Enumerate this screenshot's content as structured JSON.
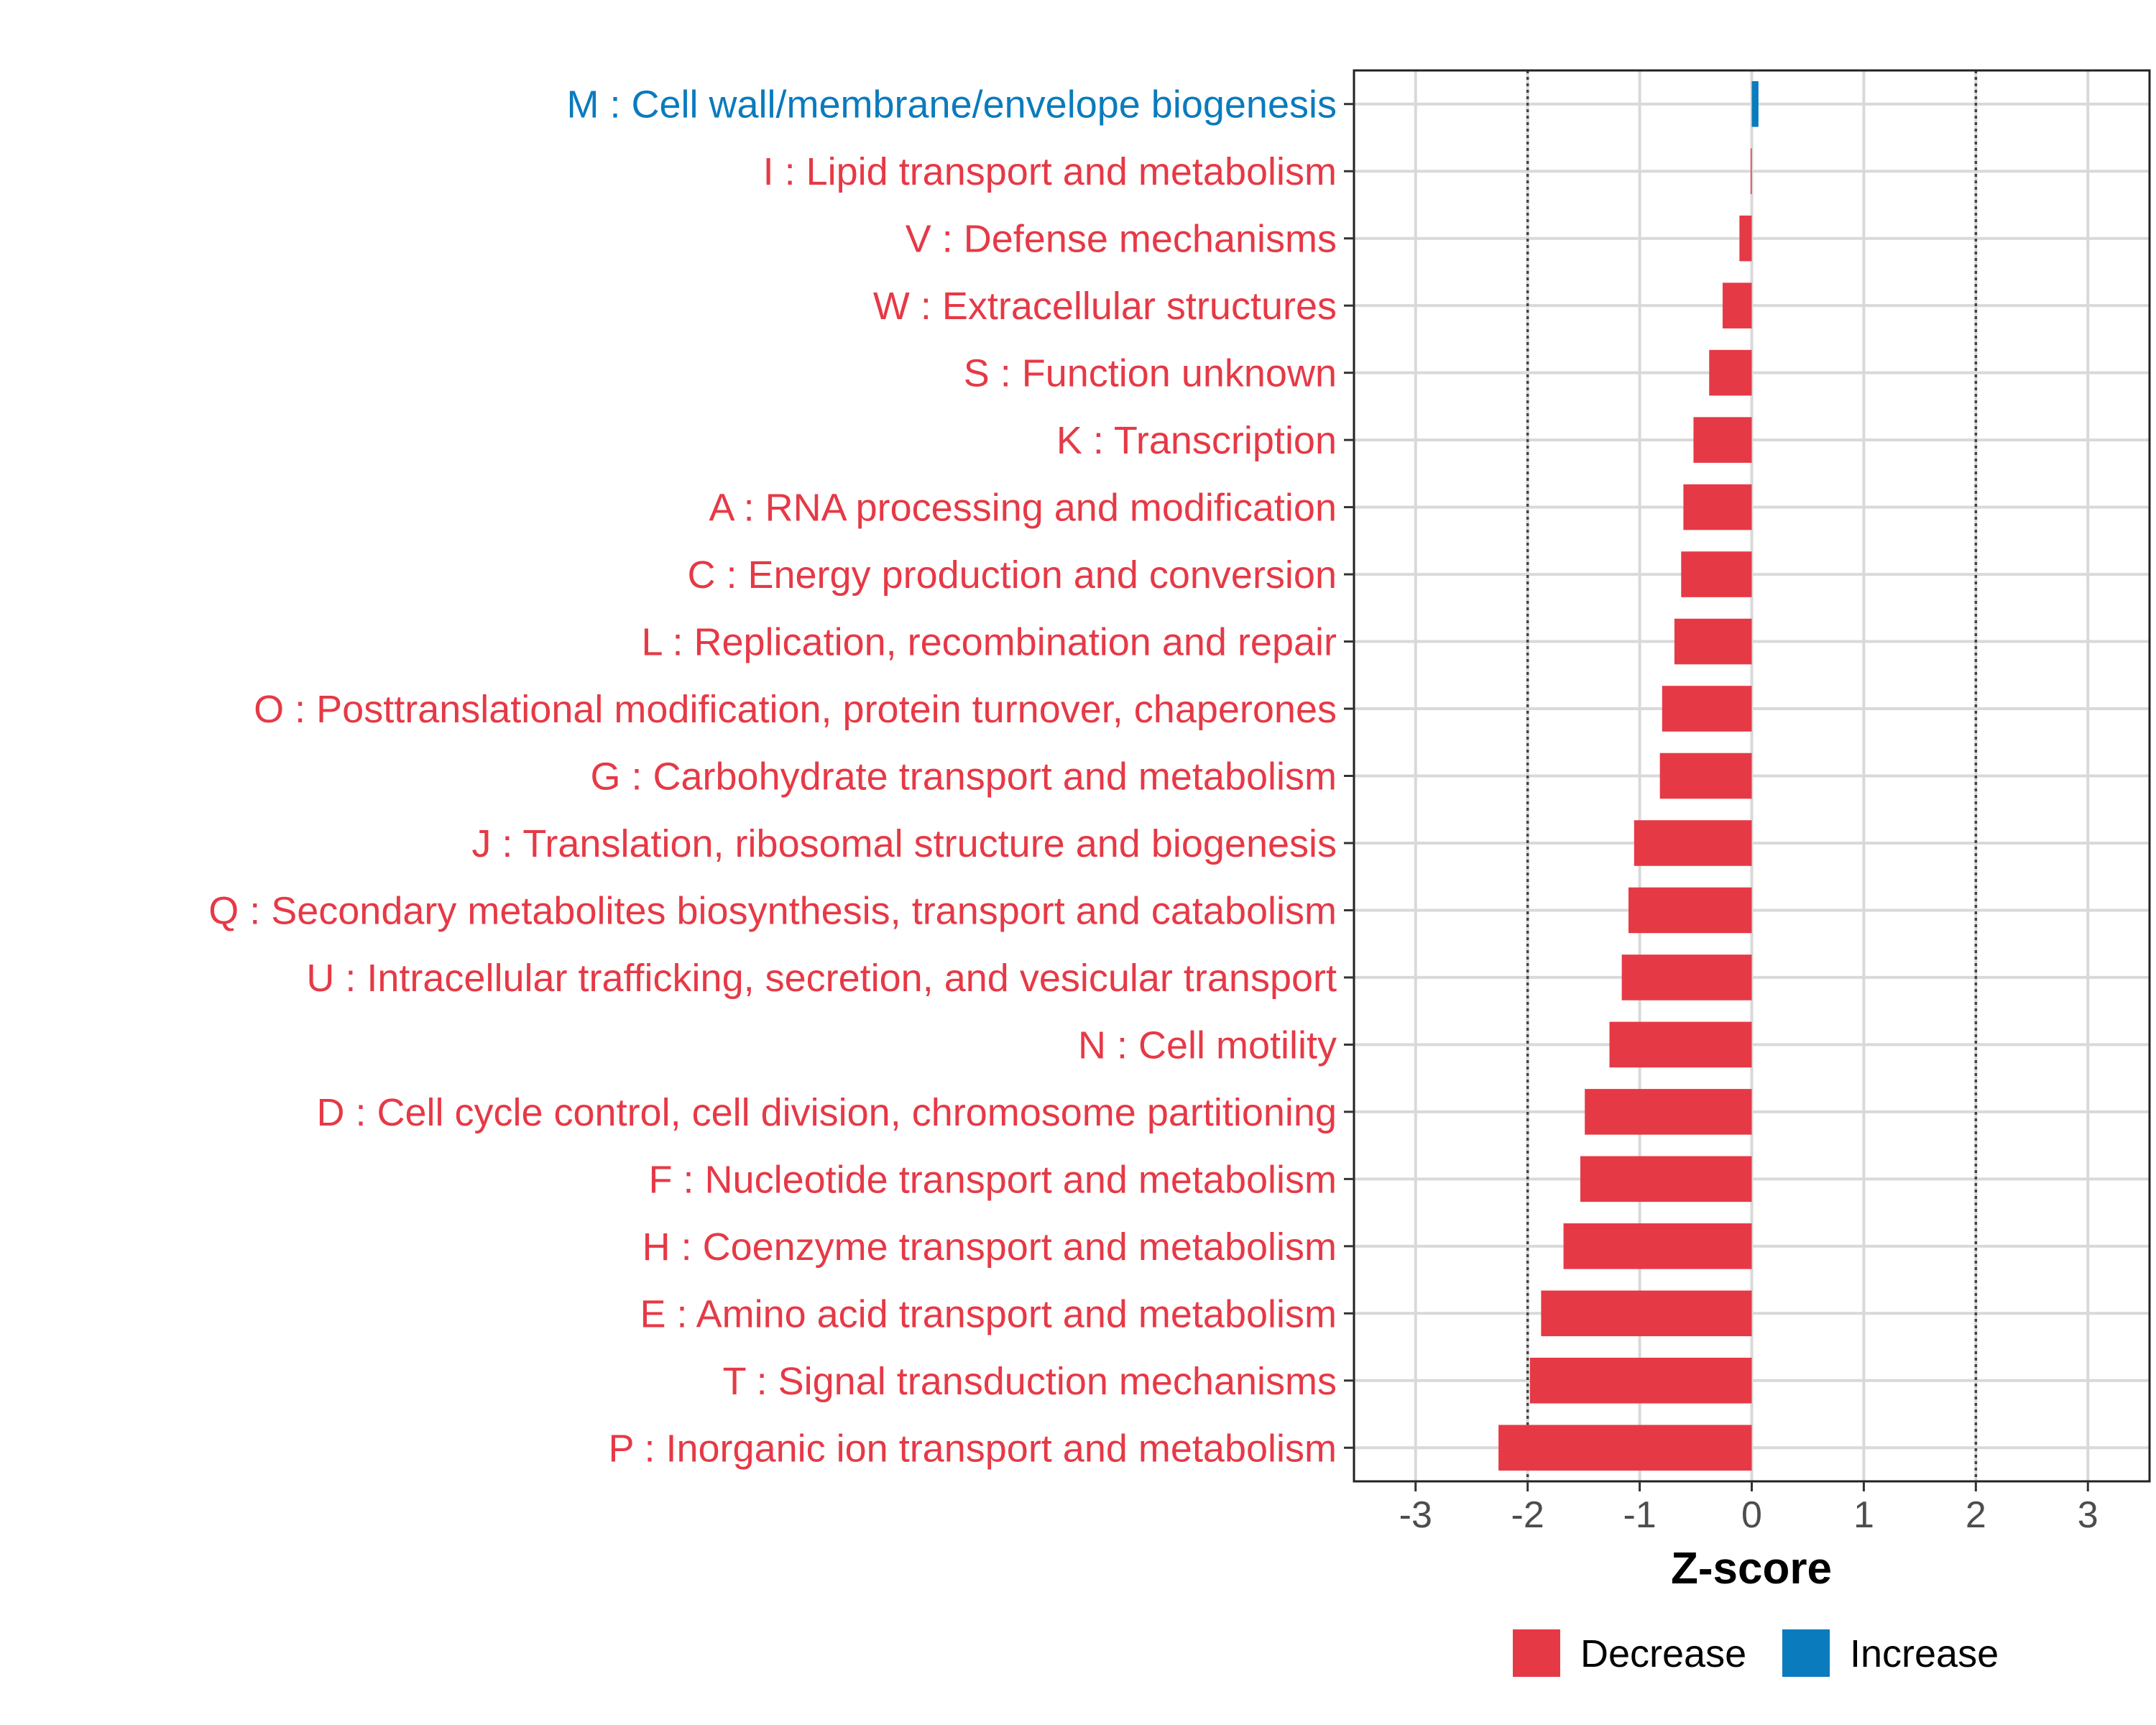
{
  "chart_data": {
    "type": "bar",
    "orientation": "horizontal",
    "title": "",
    "xlabel": "Z-score",
    "ylabel": "",
    "xlim": [
      -3.55,
      3.55
    ],
    "xticks": [
      -3,
      -2,
      -1,
      0,
      1,
      2,
      3
    ],
    "xtick_labels": [
      "-3",
      "-2",
      "-1",
      "0",
      "1",
      "2",
      "3"
    ],
    "reference_lines": [
      -2,
      2
    ],
    "grid": true,
    "legend_position": "bottom",
    "colors": {
      "Decrease": "#e63946",
      "Increase": "#0a7bbd"
    },
    "legend": [
      {
        "label": "Decrease",
        "key": "Decrease"
      },
      {
        "label": "Increase",
        "key": "Increase"
      }
    ],
    "categories": [
      "M : Cell wall/membrane/envelope biogenesis",
      "I : Lipid transport and metabolism",
      "V : Defense mechanisms",
      "W : Extracellular structures",
      "S : Function unknown",
      "K : Transcription",
      "A : RNA processing and modification",
      "C : Energy production and conversion",
      "L : Replication, recombination and repair",
      "O : Posttranslational modification, protein turnover, chaperones",
      "G : Carbohydrate transport and metabolism",
      "J : Translation, ribosomal structure and biogenesis",
      "Q : Secondary metabolites biosynthesis, transport and catabolism",
      "U : Intracellular trafficking, secretion, and vesicular transport",
      "N : Cell motility",
      "D : Cell cycle control, cell division, chromosome partitioning",
      "F : Nucleotide transport and metabolism",
      "H : Coenzyme transport and metabolism",
      "E : Amino acid transport and metabolism",
      "T : Signal transduction mechanisms",
      "P : Inorganic ion transport and metabolism"
    ],
    "values": [
      0.06,
      -0.01,
      -0.11,
      -0.26,
      -0.38,
      -0.52,
      -0.61,
      -0.63,
      -0.69,
      -0.8,
      -0.82,
      -1.05,
      -1.1,
      -1.16,
      -1.27,
      -1.49,
      -1.53,
      -1.68,
      -1.88,
      -1.98,
      -2.26
    ],
    "direction": [
      "Increase",
      "Decrease",
      "Decrease",
      "Decrease",
      "Decrease",
      "Decrease",
      "Decrease",
      "Decrease",
      "Decrease",
      "Decrease",
      "Decrease",
      "Decrease",
      "Decrease",
      "Decrease",
      "Decrease",
      "Decrease",
      "Decrease",
      "Decrease",
      "Decrease",
      "Decrease",
      "Decrease"
    ]
  }
}
